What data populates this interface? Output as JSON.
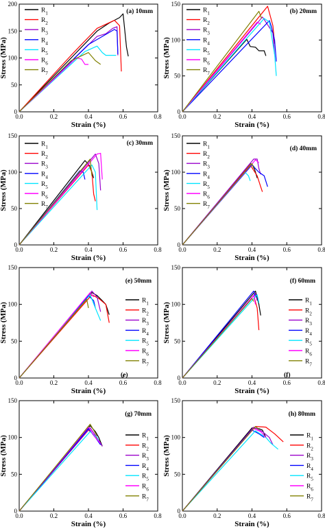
{
  "legend_names": [
    "R1",
    "R2",
    "R3",
    "R4",
    "R5",
    "R6",
    "R7"
  ],
  "series_colors": [
    "#000000",
    "#ff0000",
    "#9900cc",
    "#0000ff",
    "#00e5ff",
    "#ff00ff",
    "#808000"
  ],
  "chart_data": [
    {
      "type": "line",
      "title": "(a) 10mm",
      "xlabel": "Strain (%)",
      "ylabel": "Stress (MPa)",
      "xlim": [
        0,
        0.8
      ],
      "ylim": [
        0,
        200
      ],
      "xticks": [
        "0.0",
        "0.2",
        "0.4",
        "0.6",
        "0.8"
      ],
      "yticks": [
        "0",
        "50",
        "100",
        "150",
        "200"
      ],
      "legend": "top-left",
      "grid": false,
      "series": [
        {
          "name": "R1",
          "x": [
            0,
            0.3,
            0.45,
            0.52,
            0.58,
            0.6,
            0.62,
            0.63
          ],
          "y": [
            0,
            100,
            150,
            165,
            175,
            182,
            120,
            103
          ]
        },
        {
          "name": "R2",
          "x": [
            0,
            0.3,
            0.45,
            0.55,
            0.58,
            0.59
          ],
          "y": [
            0,
            105,
            155,
            170,
            160,
            75
          ]
        },
        {
          "name": "R3",
          "x": [
            0,
            0.45,
            0.5,
            0.54,
            0.565,
            0.57
          ],
          "y": [
            0,
            140,
            145,
            155,
            158,
            105
          ]
        },
        {
          "name": "R4",
          "x": [
            0,
            0.4,
            0.55,
            0.565,
            0.57
          ],
          "y": [
            0,
            125,
            153,
            150,
            107
          ]
        },
        {
          "name": "R5",
          "x": [
            0,
            0.38,
            0.45,
            0.48,
            0.5,
            0.55,
            0.56
          ],
          "y": [
            0,
            112,
            122,
            110,
            105,
            105,
            105
          ]
        },
        {
          "name": "R6",
          "x": [
            0,
            0.33,
            0.36,
            0.38,
            0.4
          ],
          "y": [
            0,
            100,
            98,
            88,
            88
          ]
        },
        {
          "name": "R7",
          "x": [
            0,
            0.3,
            0.4,
            0.44,
            0.47
          ],
          "y": [
            0,
            95,
            110,
            95,
            88
          ]
        }
      ]
    },
    {
      "type": "line",
      "title": "(b) 20mm",
      "xlabel": "Strain (%)",
      "ylabel": "Stress (MPa)",
      "xlim": [
        0,
        0.8
      ],
      "ylim": [
        0,
        150
      ],
      "xticks": [
        "0.0",
        "0.2",
        "0.4",
        "0.6",
        "0.8"
      ],
      "yticks": [
        "0",
        "50",
        "100",
        "150"
      ],
      "legend": "top-left",
      "grid": false,
      "series": [
        {
          "name": "R1",
          "x": [
            0,
            0.37,
            0.39,
            0.42,
            0.44,
            0.47,
            0.48
          ],
          "y": [
            0,
            101,
            91,
            90,
            85,
            85,
            78
          ]
        },
        {
          "name": "R2",
          "x": [
            0,
            0.49,
            0.52,
            0.53
          ],
          "y": [
            0,
            147,
            120,
            95
          ]
        },
        {
          "name": "R3",
          "x": [
            0,
            0.46,
            0.48,
            0.52,
            0.53
          ],
          "y": [
            0,
            132,
            125,
            110,
            80
          ]
        },
        {
          "name": "R4",
          "x": [
            0,
            0.5,
            0.51,
            0.53,
            0.54
          ],
          "y": [
            0,
            127,
            120,
            100,
            70
          ]
        },
        {
          "name": "R5",
          "x": [
            0,
            0.47,
            0.5,
            0.53,
            0.54
          ],
          "y": [
            0,
            130,
            125,
            80,
            50
          ]
        },
        {
          "name": "R6",
          "x": [
            0,
            0.43,
            0.45
          ],
          "y": [
            0,
            125,
            122
          ]
        },
        {
          "name": "R7",
          "x": [
            0,
            0.44,
            0.455
          ],
          "y": [
            0,
            140,
            130
          ]
        }
      ]
    },
    {
      "type": "line",
      "title": "(c) 30mm",
      "xlabel": "Strain (%)",
      "ylabel": "Stress (MPa)",
      "xlim": [
        0,
        0.8
      ],
      "ylim": [
        0,
        150
      ],
      "xticks": [
        "0.0",
        "0.2",
        "0.4",
        "0.6",
        "0.8"
      ],
      "yticks": [
        "0",
        "50",
        "100",
        "150"
      ],
      "legend": "top-left",
      "grid": false,
      "series": [
        {
          "name": "R1",
          "x": [
            0,
            0.38,
            0.41,
            0.42,
            0.43
          ],
          "y": [
            0,
            116,
            108,
            100,
            92
          ]
        },
        {
          "name": "R2",
          "x": [
            0,
            0.4,
            0.42,
            0.43,
            0.44
          ],
          "y": [
            0,
            110,
            100,
            70,
            60
          ]
        },
        {
          "name": "R3",
          "x": [
            0,
            0.44,
            0.46,
            0.47
          ],
          "y": [
            0,
            125,
            112,
            75
          ]
        },
        {
          "name": "R4",
          "x": [
            0,
            0.35,
            0.37,
            0.38
          ],
          "y": [
            0,
            102,
            100,
            90
          ]
        },
        {
          "name": "R5",
          "x": [
            0,
            0.42,
            0.44,
            0.45
          ],
          "y": [
            0,
            110,
            100,
            48
          ]
        },
        {
          "name": "R6",
          "x": [
            0,
            0.45,
            0.47,
            0.48
          ],
          "y": [
            0,
            125,
            126,
            90
          ]
        },
        {
          "name": "R7",
          "x": [
            0,
            0.41,
            0.42
          ],
          "y": [
            0,
            118,
            95
          ]
        }
      ]
    },
    {
      "type": "line",
      "title": "(d) 40mm",
      "xlabel": "Strain (%)",
      "ylabel": "Stress (MPa)",
      "xlim": [
        0,
        0.8
      ],
      "ylim": [
        0,
        150
      ],
      "xticks": [
        "0.0",
        "0.2",
        "0.4",
        "0.6",
        "0.8"
      ],
      "yticks": [
        "0",
        "50",
        "100",
        "150"
      ],
      "legend": "top-right",
      "grid": false,
      "series": [
        {
          "name": "R1",
          "x": [
            0,
            0.39,
            0.41,
            0.42,
            0.43
          ],
          "y": [
            0,
            112,
            108,
            100,
            92
          ]
        },
        {
          "name": "R2",
          "x": [
            0,
            0.39,
            0.43,
            0.45,
            0.46
          ],
          "y": [
            0,
            110,
            95,
            80,
            73
          ]
        },
        {
          "name": "R3",
          "x": [
            0,
            0.41,
            0.43,
            0.44,
            0.45
          ],
          "y": [
            0,
            118,
            118,
            105,
            97
          ]
        },
        {
          "name": "R4",
          "x": [
            0,
            0.4,
            0.44,
            0.47,
            0.49
          ],
          "y": [
            0,
            110,
            100,
            95,
            80
          ]
        },
        {
          "name": "R5",
          "x": [
            0,
            0.36,
            0.38,
            0.39
          ],
          "y": [
            0,
            100,
            95,
            88
          ]
        },
        {
          "name": "R6",
          "x": [
            0,
            0.42,
            0.44
          ],
          "y": [
            0,
            117,
            113
          ]
        },
        {
          "name": "R7",
          "x": [
            0,
            0.4,
            0.41
          ],
          "y": [
            0,
            112,
            105
          ]
        }
      ]
    },
    {
      "type": "line",
      "title": "(e) 50mm",
      "xlabel": "Strain (%)",
      "ylabel": "Stress (MPa)",
      "xlim": [
        0,
        0.8
      ],
      "ylim": [
        0,
        150
      ],
      "xticks": [
        "0.0",
        "0.2",
        "0.4",
        "0.6",
        "0.8"
      ],
      "yticks": [
        "0",
        "50",
        "100",
        "150"
      ],
      "legend": "right",
      "grid": false,
      "series": [
        {
          "name": "R1",
          "x": [
            0,
            0.42,
            0.45,
            0.48,
            0.5,
            0.52
          ],
          "y": [
            0,
            116,
            112,
            105,
            100,
            86
          ]
        },
        {
          "name": "R2",
          "x": [
            0,
            0.42,
            0.46,
            0.5,
            0.52
          ],
          "y": [
            0,
            113,
            108,
            100,
            75
          ]
        },
        {
          "name": "R3",
          "x": [
            0,
            0.42,
            0.45,
            0.47
          ],
          "y": [
            0,
            118,
            110,
            90
          ]
        },
        {
          "name": "R4",
          "x": [
            0,
            0.4,
            0.43,
            0.44
          ],
          "y": [
            0,
            112,
            105,
            95
          ]
        },
        {
          "name": "R5",
          "x": [
            0,
            0.41,
            0.44,
            0.47
          ],
          "y": [
            0,
            113,
            95,
            78
          ]
        },
        {
          "name": "R6",
          "x": [
            0,
            0.41,
            0.43
          ],
          "y": [
            0,
            116,
            110
          ]
        },
        {
          "name": "R7",
          "x": [
            0,
            0.39,
            0.4
          ],
          "y": [
            0,
            107,
            95
          ]
        }
      ]
    },
    {
      "type": "line",
      "title": "(f) 60mm",
      "xlabel": "Strain (%)",
      "ylabel": "Stress (MPa)",
      "xlim": [
        0,
        0.8
      ],
      "ylim": [
        0,
        150
      ],
      "xticks": [
        "0.0",
        "0.2",
        "0.4",
        "0.6",
        "0.8"
      ],
      "yticks": [
        "0",
        "50",
        "100",
        "150"
      ],
      "legend": "right",
      "grid": false,
      "series": [
        {
          "name": "R1",
          "x": [
            0,
            0.42,
            0.44,
            0.45
          ],
          "y": [
            0,
            118,
            100,
            85
          ]
        },
        {
          "name": "R2",
          "x": [
            0,
            0.41,
            0.43,
            0.44
          ],
          "y": [
            0,
            112,
            95,
            65
          ]
        },
        {
          "name": "R3",
          "x": [
            0,
            0.42,
            0.43
          ],
          "y": [
            0,
            115,
            105
          ]
        },
        {
          "name": "R4",
          "x": [
            0,
            0.41,
            0.42
          ],
          "y": [
            0,
            118,
            110
          ]
        },
        {
          "name": "R5",
          "x": [
            0,
            0.43,
            0.44
          ],
          "y": [
            0,
            113,
            102
          ]
        },
        {
          "name": "R6",
          "x": [
            0,
            0.41,
            0.42
          ],
          "y": [
            0,
            112,
            100
          ]
        },
        {
          "name": "R7",
          "x": [
            0,
            0.4,
            0.41
          ],
          "y": [
            0,
            108,
            104
          ]
        }
      ]
    },
    {
      "type": "line",
      "title": "(g) 70mm",
      "xlabel": "Strain (%)",
      "ylabel": "Stress (MPa)",
      "xlim": [
        0,
        0.8
      ],
      "ylim": [
        0,
        150
      ],
      "xticks": [
        "0.0",
        "0.2",
        "0.4",
        "0.6",
        "0.8"
      ],
      "yticks": [
        "0",
        "50",
        "100",
        "150"
      ],
      "legend": "right",
      "grid": false,
      "series": [
        {
          "name": "R1",
          "x": [
            0,
            0.41,
            0.44,
            0.46,
            0.48
          ],
          "y": [
            0,
            116,
            108,
            100,
            88
          ]
        },
        {
          "name": "R2",
          "x": [
            0,
            0.4,
            0.44,
            0.47
          ],
          "y": [
            0,
            110,
            102,
            92
          ]
        },
        {
          "name": "R3",
          "x": [
            0,
            0.41,
            0.45,
            0.48
          ],
          "y": [
            0,
            113,
            100,
            88
          ]
        },
        {
          "name": "R4",
          "x": [
            0,
            0.4,
            0.44,
            0.47
          ],
          "y": [
            0,
            112,
            100,
            90
          ]
        },
        {
          "name": "R5",
          "x": [
            0,
            0.41,
            0.45,
            0.46
          ],
          "y": [
            0,
            108,
            100,
            95
          ]
        },
        {
          "name": "R6",
          "x": [
            0,
            0.4,
            0.44,
            0.47
          ],
          "y": [
            0,
            114,
            100,
            92
          ]
        },
        {
          "name": "R7",
          "x": [
            0,
            0.41,
            0.43,
            0.45
          ],
          "y": [
            0,
            118,
            110,
            102
          ]
        }
      ]
    },
    {
      "type": "line",
      "title": "(h) 80mm",
      "xlabel": "Strain (%)",
      "ylabel": "Stress (MPa)",
      "xlim": [
        0,
        0.8
      ],
      "ylim": [
        0,
        150
      ],
      "xticks": [
        "0.0",
        "0.2",
        "0.4",
        "0.6",
        "0.8"
      ],
      "yticks": [
        "0",
        "50",
        "100",
        "150"
      ],
      "legend": "right",
      "grid": false,
      "series": [
        {
          "name": "R1",
          "x": [
            0,
            0.4,
            0.44,
            0.46,
            0.48
          ],
          "y": [
            0,
            113,
            112,
            110,
            100
          ]
        },
        {
          "name": "R2",
          "x": [
            0,
            0.42,
            0.48,
            0.53,
            0.58
          ],
          "y": [
            0,
            115,
            114,
            105,
            94
          ]
        },
        {
          "name": "R3",
          "x": [
            0,
            0.41,
            0.46,
            0.5,
            0.52
          ],
          "y": [
            0,
            114,
            108,
            100,
            90
          ]
        },
        {
          "name": "R4",
          "x": [
            0,
            0.4,
            0.44,
            0.47
          ],
          "y": [
            0,
            110,
            105,
            100
          ]
        },
        {
          "name": "R5",
          "x": [
            0,
            0.42,
            0.48,
            0.51,
            0.55
          ],
          "y": [
            0,
            109,
            100,
            92,
            84
          ]
        },
        {
          "name": "R6",
          "x": [
            0,
            0.41,
            0.45,
            0.48
          ],
          "y": [
            0,
            112,
            108,
            100
          ]
        },
        {
          "name": "R7",
          "x": [
            0,
            0.42,
            0.44
          ],
          "y": [
            0,
            115,
            111
          ]
        }
      ]
    }
  ],
  "stray_labels": {
    "e": "(e)",
    "f": "(f)"
  }
}
